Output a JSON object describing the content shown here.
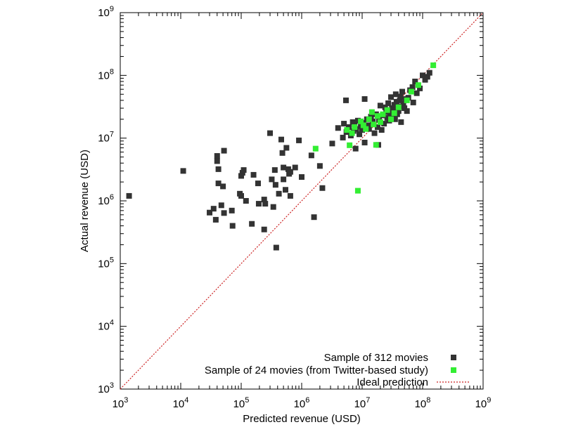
{
  "chart_data": {
    "type": "scatter",
    "xlabel": "Predicted revenue (USD)",
    "ylabel": "Actual revenue (USD)",
    "x_scale": "log",
    "y_scale": "log",
    "xlim": [
      1000,
      1000000000
    ],
    "ylim": [
      1000,
      1000000000
    ],
    "x_ticks": [
      {
        "base": "10",
        "exp": "3"
      },
      {
        "base": "10",
        "exp": "4"
      },
      {
        "base": "10",
        "exp": "5"
      },
      {
        "base": "10",
        "exp": "6"
      },
      {
        "base": "10",
        "exp": "7"
      },
      {
        "base": "10",
        "exp": "8"
      },
      {
        "base": "10",
        "exp": "9"
      }
    ],
    "y_ticks": [
      {
        "base": "10",
        "exp": "3"
      },
      {
        "base": "10",
        "exp": "4"
      },
      {
        "base": "10",
        "exp": "5"
      },
      {
        "base": "10",
        "exp": "6"
      },
      {
        "base": "10",
        "exp": "7"
      },
      {
        "base": "10",
        "exp": "8"
      },
      {
        "base": "10",
        "exp": "9"
      }
    ],
    "grid": false,
    "legend_position": "bottom-right",
    "series": [
      {
        "name": "Sample of 312 movies",
        "color": "#333333",
        "marker": "square",
        "points": [
          [
            1400,
            1200000
          ],
          [
            11000,
            3000000
          ],
          [
            30000,
            650000
          ],
          [
            35000,
            750000
          ],
          [
            38000,
            500000
          ],
          [
            40000,
            5200000
          ],
          [
            40000,
            4300000
          ],
          [
            42000,
            3200000
          ],
          [
            42000,
            1900000
          ],
          [
            47000,
            850000
          ],
          [
            50000,
            1700000
          ],
          [
            52000,
            6300000
          ],
          [
            52000,
            640000
          ],
          [
            70000,
            700000
          ],
          [
            72000,
            400000
          ],
          [
            95000,
            1300000
          ],
          [
            100000,
            2500000
          ],
          [
            100000,
            1200000
          ],
          [
            105000,
            2800000
          ],
          [
            110000,
            3100000
          ],
          [
            120000,
            1000000
          ],
          [
            150000,
            430000
          ],
          [
            160000,
            2600000
          ],
          [
            190000,
            1900000
          ],
          [
            195000,
            900000
          ],
          [
            240000,
            1050000
          ],
          [
            240000,
            350000
          ],
          [
            250000,
            900000
          ],
          [
            300000,
            12000000
          ],
          [
            320000,
            2200000
          ],
          [
            340000,
            800000
          ],
          [
            360000,
            3100000
          ],
          [
            370000,
            1800000
          ],
          [
            380000,
            180000
          ],
          [
            420000,
            1300000
          ],
          [
            460000,
            9500000
          ],
          [
            480000,
            5800000
          ],
          [
            500000,
            3400000
          ],
          [
            500000,
            2200000
          ],
          [
            540000,
            1500000
          ],
          [
            560000,
            7000000
          ],
          [
            600000,
            3200000
          ],
          [
            620000,
            2700000
          ],
          [
            650000,
            1200000
          ],
          [
            650000,
            2900000
          ],
          [
            780000,
            3400000
          ],
          [
            900000,
            9200000
          ],
          [
            1000000,
            2400000
          ],
          [
            1450000,
            5300000
          ],
          [
            1600000,
            550000
          ],
          [
            2000000,
            3600000
          ],
          [
            2200000,
            1600000
          ],
          [
            3200000,
            8200000
          ],
          [
            4000000,
            14500000
          ],
          [
            4800000,
            10200000
          ],
          [
            5000000,
            17000000
          ],
          [
            5400000,
            40000000
          ],
          [
            5500000,
            12500000
          ],
          [
            6000000,
            15000000
          ],
          [
            6500000,
            11000000
          ],
          [
            7000000,
            18000000
          ],
          [
            7200000,
            13000000
          ],
          [
            7500000,
            16500000
          ],
          [
            7800000,
            6800000
          ],
          [
            8000000,
            14000000
          ],
          [
            8500000,
            19000000
          ],
          [
            9000000,
            11500000
          ],
          [
            9500000,
            15500000
          ],
          [
            10000000,
            13500000
          ],
          [
            10500000,
            17500000
          ],
          [
            11000000,
            42000000
          ],
          [
            11000000,
            8500000
          ],
          [
            12000000,
            20000000
          ],
          [
            12500000,
            16000000
          ],
          [
            13000000,
            14000000
          ],
          [
            14000000,
            22000000
          ],
          [
            15000000,
            18500000
          ],
          [
            16000000,
            12000000
          ],
          [
            17000000,
            24000000
          ],
          [
            18000000,
            15000000
          ],
          [
            18500000,
            7800000
          ],
          [
            19000000,
            19500000
          ],
          [
            20000000,
            33000000
          ],
          [
            21000000,
            13500000
          ],
          [
            22000000,
            23000000
          ],
          [
            23000000,
            17000000
          ],
          [
            24000000,
            31000000
          ],
          [
            25000000,
            26000000
          ],
          [
            26000000,
            21000000
          ],
          [
            27000000,
            36000000
          ],
          [
            28000000,
            19000000
          ],
          [
            29000000,
            25000000
          ],
          [
            30000000,
            45000000
          ],
          [
            31000000,
            30000000
          ],
          [
            32000000,
            23000000
          ],
          [
            33000000,
            28000000
          ],
          [
            34000000,
            34000000
          ],
          [
            35000000,
            20000000
          ],
          [
            36000000,
            50000000
          ],
          [
            37000000,
            38000000
          ],
          [
            38000000,
            24000000
          ],
          [
            40000000,
            27000000
          ],
          [
            42000000,
            40000000
          ],
          [
            43000000,
            46000000
          ],
          [
            44000000,
            18000000
          ],
          [
            45000000,
            32000000
          ],
          [
            46000000,
            55000000
          ],
          [
            48000000,
            35000000
          ],
          [
            50000000,
            30000000
          ],
          [
            52000000,
            42000000
          ],
          [
            55000000,
            27000000
          ],
          [
            58000000,
            44000000
          ],
          [
            62000000,
            58000000
          ],
          [
            68000000,
            65000000
          ],
          [
            70000000,
            37000000
          ],
          [
            75000000,
            80000000
          ],
          [
            80000000,
            52000000
          ],
          [
            90000000,
            62000000
          ],
          [
            100000000,
            100000000
          ],
          [
            110000000,
            85000000
          ],
          [
            120000000,
            95000000
          ],
          [
            130000000,
            110000000
          ]
        ]
      },
      {
        "name": "Sample of 24 movies (from Twitter-based study)",
        "color": "#33ee33",
        "marker": "square",
        "points": [
          [
            1700000,
            6800000
          ],
          [
            5600000,
            13500000
          ],
          [
            6200000,
            7700000
          ],
          [
            6800000,
            12000000
          ],
          [
            7500000,
            15000000
          ],
          [
            8500000,
            1450000
          ],
          [
            9500000,
            18500000
          ],
          [
            10500000,
            16000000
          ],
          [
            11500000,
            14000000
          ],
          [
            13000000,
            20000000
          ],
          [
            14500000,
            26000000
          ],
          [
            15500000,
            16500000
          ],
          [
            17000000,
            7800000
          ],
          [
            18000000,
            22500000
          ],
          [
            20000000,
            18000000
          ],
          [
            22000000,
            24000000
          ],
          [
            26000000,
            28000000
          ],
          [
            30000000,
            20000000
          ],
          [
            34000000,
            25000000
          ],
          [
            40000000,
            31000000
          ],
          [
            55000000,
            40000000
          ],
          [
            65000000,
            55000000
          ],
          [
            85000000,
            70000000
          ],
          [
            150000000,
            145000000
          ]
        ]
      }
    ],
    "reference_line": {
      "name": "Ideal prediction",
      "color": "#cc2222",
      "style": "dotted",
      "from": [
        1000,
        1000
      ],
      "to": [
        1000000000,
        1000000000
      ]
    }
  }
}
